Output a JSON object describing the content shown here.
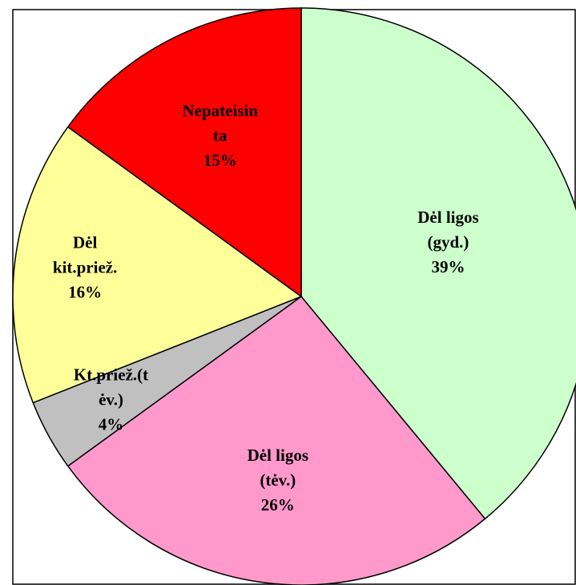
{
  "chart_data": {
    "type": "pie",
    "categories": [
      [
        "Dėl ligos",
        "(gyd.)"
      ],
      [
        "Dėl ligos",
        "(tėv.)"
      ],
      [
        "Kt.priež.(t",
        "ėv.)"
      ],
      [
        "Dėl",
        "kit.priež."
      ],
      [
        "Nepateisin",
        "ta"
      ]
    ],
    "values": [
      39,
      26,
      4,
      16,
      15
    ],
    "value_labels": [
      "39%",
      "26%",
      "4%",
      "16%",
      "15%"
    ],
    "colors": [
      "#ccffcc",
      "#ff99cc",
      "#c0c0c0",
      "#ffff99",
      "#ff0000"
    ]
  }
}
